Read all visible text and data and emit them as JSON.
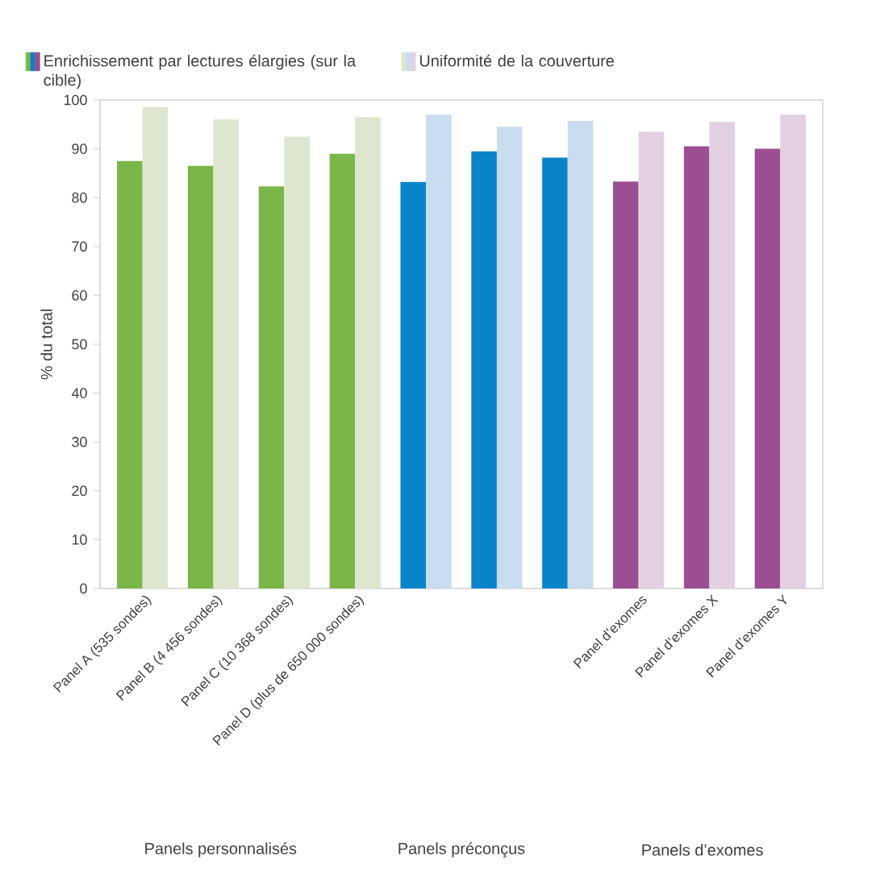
{
  "chart_data": {
    "type": "bar",
    "ylabel": "% du total",
    "categories": [
      "Panel A (535 sondes)",
      "Panel B (4 456 sondes)",
      "Panel C (10 368 sondes)",
      "Panel D (plus de 650 000 sondes)",
      null,
      null,
      null,
      "Panel d’exomes",
      "Panel d’exomes X",
      "Panel d’exomes Y"
    ],
    "series": [
      {
        "name": "Enrichissement par lectures élargies (sur la cible)",
        "colors": [
          "#7ab648",
          "#7ab648",
          "#7ab648",
          "#7ab648",
          "#0a84c8",
          "#0a84c8",
          "#0a84c8",
          "#9b4f92",
          "#9b4f92",
          "#9b4f92"
        ],
        "values": [
          87.5,
          86.5,
          82.3,
          89,
          83.2,
          89.5,
          88.2,
          83.3,
          90.5,
          90
        ]
      },
      {
        "name": "Uniformité de la couverture",
        "colors": [
          "#dfe6cf",
          "#dfe6cf",
          "#dfe6cf",
          "#dfe6cf",
          "#cadcf0",
          "#cadcf0",
          "#cadcf0",
          "#e2d1e2",
          "#e2d1e2",
          "#e2d1e2"
        ],
        "values": [
          98.5,
          96,
          92.5,
          96.5,
          97,
          94.5,
          95.7,
          93.5,
          95.5,
          97
        ]
      }
    ],
    "ylim": [
      0,
      100
    ],
    "yticks": [
      0,
      10,
      20,
      30,
      40,
      50,
      60,
      70,
      80,
      90,
      100
    ],
    "legend": "top",
    "annotations": [
      "Panels personnalisés",
      "Panels préconçus",
      "Panels d’exomes"
    ]
  }
}
